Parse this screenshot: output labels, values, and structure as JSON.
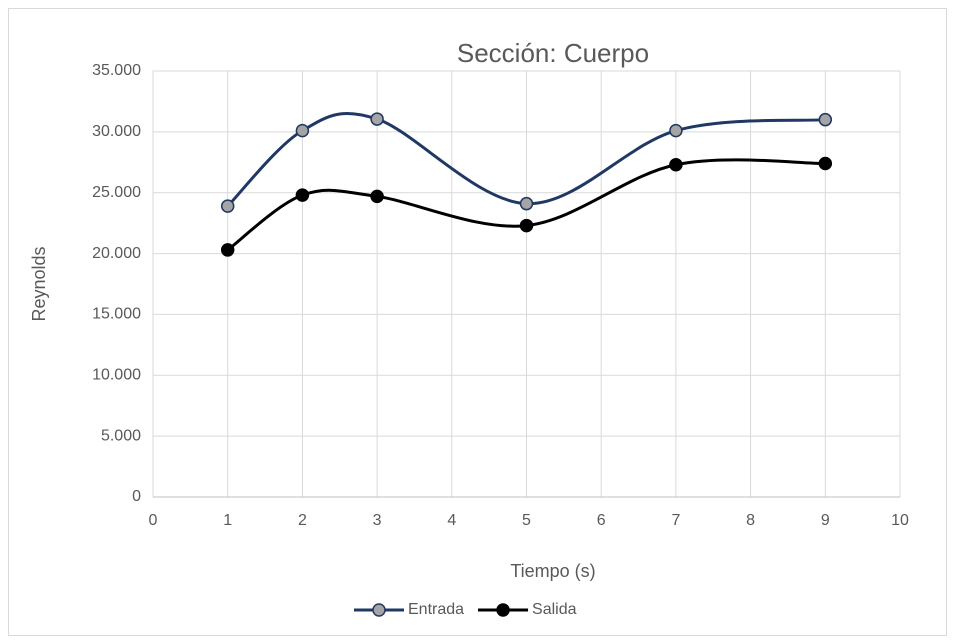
{
  "chart_data": {
    "type": "line",
    "title": "Sección: Cuerpo",
    "x_label": "Tiempo (s)",
    "y_label": "Reynolds",
    "x": [
      1,
      2,
      3,
      5,
      7,
      9
    ],
    "series": [
      {
        "name": "Entrada",
        "color": "#203864",
        "marker_color": "#a5a5a5",
        "values": [
          23900,
          30100,
          31050,
          24100,
          30100,
          31000
        ]
      },
      {
        "name": "Salida",
        "color": "#000000",
        "marker_color": "#000000",
        "values": [
          20300,
          24800,
          24700,
          22300,
          27300,
          27400
        ]
      }
    ],
    "xlim": [
      0,
      10
    ],
    "xticks": [
      0,
      1,
      2,
      3,
      4,
      5,
      6,
      7,
      8,
      9,
      10
    ],
    "ylim": [
      0,
      35000
    ],
    "yticks": [
      0,
      {
        "value": 5000,
        "label": "5.000"
      },
      {
        "value": 10000,
        "label": "10.000"
      },
      {
        "value": 15000,
        "label": "15.000"
      },
      {
        "value": 20000,
        "label": "20.000"
      },
      {
        "value": 25000,
        "label": "25.000"
      },
      {
        "value": 30000,
        "label": "30.000"
      },
      {
        "value": 35000,
        "label": "35.000"
      }
    ],
    "grid": true,
    "smooth": true,
    "legend": "bottom"
  }
}
